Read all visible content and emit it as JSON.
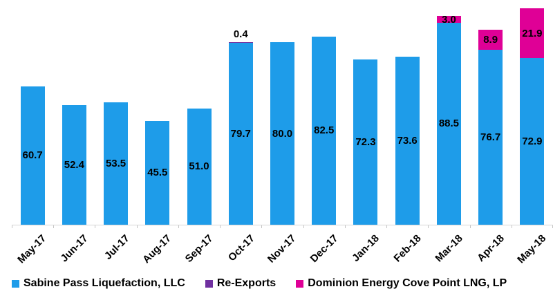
{
  "chart_data": {
    "type": "bar",
    "stacked": true,
    "title": "",
    "xlabel": "",
    "ylabel": "",
    "y_axis_visible": false,
    "gridlines": false,
    "legend_position": "bottom",
    "label_format": "one_decimal",
    "categories": [
      "May-17",
      "Jun-17",
      "Jul-17",
      "Aug-17",
      "Sep-17",
      "Oct-17",
      "Nov-17",
      "Dec-17",
      "Jan-18",
      "Feb-18",
      "Mar-18",
      "Apr-18",
      "May-18"
    ],
    "series": [
      {
        "name": "Sabine Pass Liquefaction, LLC",
        "color": "#1e9ce9",
        "values": [
          60.7,
          52.4,
          53.5,
          45.5,
          51.0,
          79.7,
          80.0,
          82.5,
          72.3,
          73.6,
          88.5,
          76.7,
          72.9
        ]
      },
      {
        "name": "Re-Exports",
        "color": "#7030a0",
        "values": [
          0,
          0,
          0,
          0,
          0,
          0.4,
          0,
          0,
          0,
          0,
          0,
          0,
          0
        ]
      },
      {
        "name": "Dominion Energy Cove Point LNG, LP",
        "color": "#df0096",
        "values": [
          0,
          0,
          0,
          0,
          0,
          0,
          0,
          0,
          0,
          0,
          3.0,
          8.9,
          21.9
        ]
      }
    ],
    "colors": {
      "axis_line": "#d6d6d6",
      "tick": "#c4c4c4",
      "label_text": "#000000"
    }
  }
}
